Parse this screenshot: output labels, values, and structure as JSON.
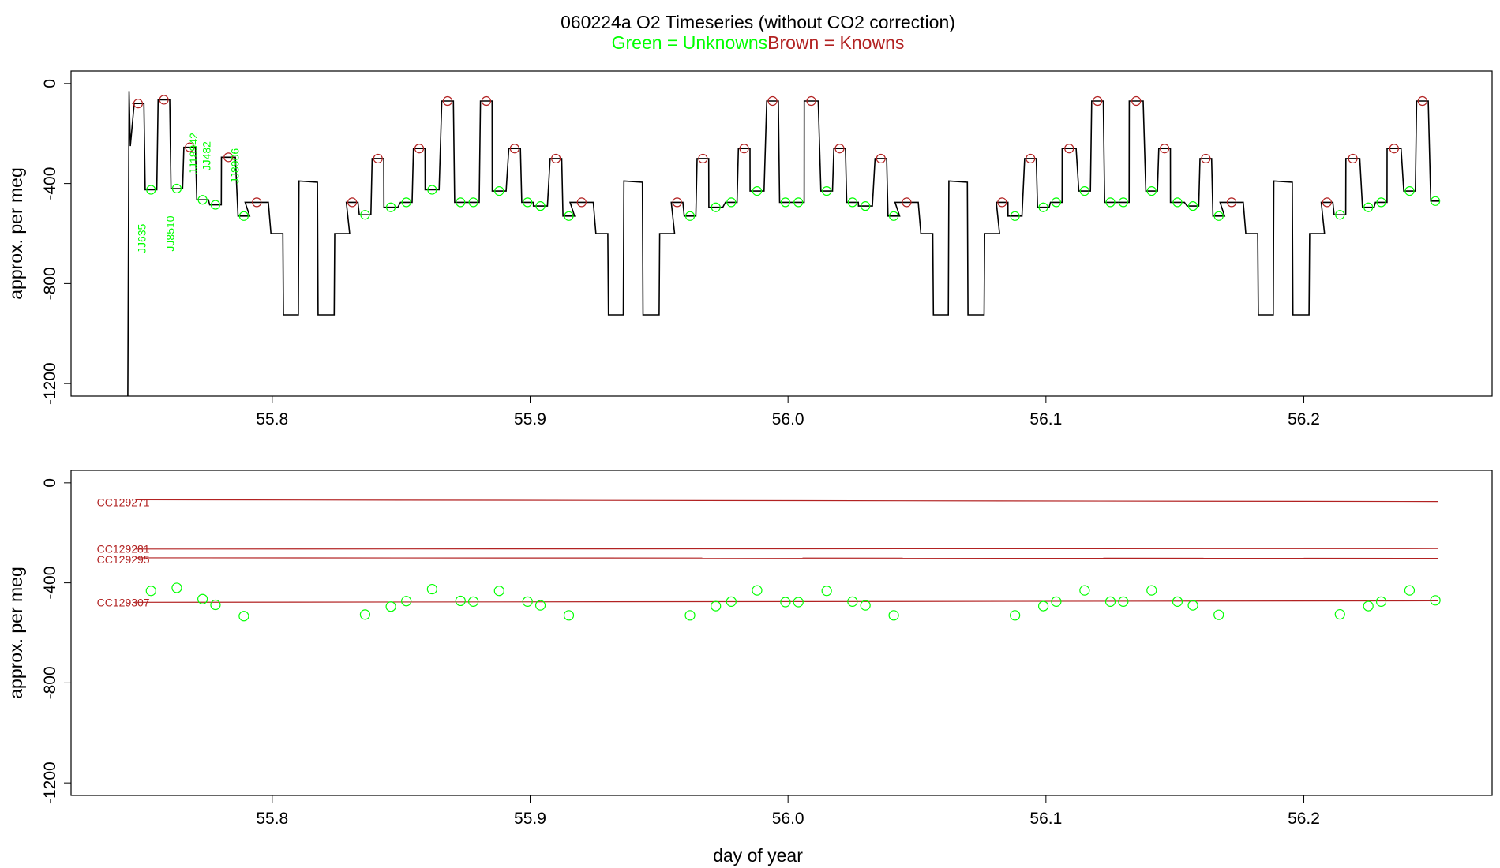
{
  "chart_data": [
    {
      "type": "line",
      "title_line1": "060224a   O2 Timeseries (without CO2 correction)",
      "subtitle_green": "Green = Unknowns",
      "subtitle_brown": "Brown = Knowns",
      "xlabel": "",
      "ylabel": "approx. per meg",
      "xlim": [
        55.722,
        56.273
      ],
      "ylim": [
        -1250,
        50
      ],
      "x_ticks": [
        "55.8",
        "55.9",
        "56.0",
        "56.1",
        "56.2"
      ],
      "x_tick_values": [
        55.8,
        55.9,
        56.0,
        56.1,
        56.2
      ],
      "y_ticks": [
        "0",
        "-400",
        "-800",
        "-1200"
      ],
      "y_tick_values": [
        0,
        -400,
        -800,
        -1200
      ],
      "colors": {
        "unknown": "#00ff00",
        "known": "#b22222",
        "trace": "#000000"
      },
      "sample_labels": [
        {
          "text": "JJ635",
          "x": 55.751,
          "y": -620
        },
        {
          "text": "JJ8510",
          "x": 55.762,
          "y": -600
        },
        {
          "text": "JJ18942",
          "x": 55.771,
          "y": -280
        },
        {
          "text": "JJ482",
          "x": 55.776,
          "y": -290
        },
        {
          "text": "JJ8906",
          "x": 55.787,
          "y": -330
        }
      ],
      "unknown_points": [
        {
          "x": 55.753,
          "y": -425
        },
        {
          "x": 55.763,
          "y": -420
        },
        {
          "x": 55.773,
          "y": -465
        },
        {
          "x": 55.778,
          "y": -485
        },
        {
          "x": 55.789,
          "y": -530
        },
        {
          "x": 55.836,
          "y": -525
        },
        {
          "x": 55.846,
          "y": -495
        },
        {
          "x": 55.852,
          "y": -475
        },
        {
          "x": 55.862,
          "y": -425
        },
        {
          "x": 55.873,
          "y": -475
        },
        {
          "x": 55.878,
          "y": -475
        },
        {
          "x": 55.888,
          "y": -430
        },
        {
          "x": 55.899,
          "y": -475
        },
        {
          "x": 55.904,
          "y": -490
        },
        {
          "x": 55.915,
          "y": -530
        },
        {
          "x": 55.962,
          "y": -530
        },
        {
          "x": 55.972,
          "y": -495
        },
        {
          "x": 55.978,
          "y": -475
        },
        {
          "x": 55.988,
          "y": -430
        },
        {
          "x": 55.999,
          "y": -475
        },
        {
          "x": 56.004,
          "y": -475
        },
        {
          "x": 56.015,
          "y": -430
        },
        {
          "x": 56.025,
          "y": -475
        },
        {
          "x": 56.03,
          "y": -490
        },
        {
          "x": 56.041,
          "y": -530
        },
        {
          "x": 56.088,
          "y": -530
        },
        {
          "x": 56.099,
          "y": -495
        },
        {
          "x": 56.104,
          "y": -475
        },
        {
          "x": 56.115,
          "y": -430
        },
        {
          "x": 56.125,
          "y": -475
        },
        {
          "x": 56.13,
          "y": -475
        },
        {
          "x": 56.141,
          "y": -430
        },
        {
          "x": 56.151,
          "y": -475
        },
        {
          "x": 56.157,
          "y": -490
        },
        {
          "x": 56.167,
          "y": -530
        },
        {
          "x": 56.214,
          "y": -525
        },
        {
          "x": 56.225,
          "y": -495
        },
        {
          "x": 56.23,
          "y": -475
        },
        {
          "x": 56.241,
          "y": -430
        },
        {
          "x": 56.251,
          "y": -470
        }
      ],
      "known_points": [
        {
          "x": 55.748,
          "y": -80
        },
        {
          "x": 55.758,
          "y": -65
        },
        {
          "x": 55.768,
          "y": -255
        },
        {
          "x": 55.783,
          "y": -295
        },
        {
          "x": 55.794,
          "y": -475
        },
        {
          "x": 55.831,
          "y": -475
        },
        {
          "x": 55.841,
          "y": -300
        },
        {
          "x": 55.857,
          "y": -260
        },
        {
          "x": 55.868,
          "y": -70
        },
        {
          "x": 55.883,
          "y": -70
        },
        {
          "x": 55.894,
          "y": -260
        },
        {
          "x": 55.91,
          "y": -300
        },
        {
          "x": 55.92,
          "y": -475
        },
        {
          "x": 55.957,
          "y": -475
        },
        {
          "x": 55.967,
          "y": -300
        },
        {
          "x": 55.983,
          "y": -260
        },
        {
          "x": 55.994,
          "y": -70
        },
        {
          "x": 56.009,
          "y": -70
        },
        {
          "x": 56.02,
          "y": -260
        },
        {
          "x": 56.036,
          "y": -300
        },
        {
          "x": 56.046,
          "y": -475
        },
        {
          "x": 56.083,
          "y": -475
        },
        {
          "x": 56.094,
          "y": -300
        },
        {
          "x": 56.109,
          "y": -260
        },
        {
          "x": 56.12,
          "y": -70
        },
        {
          "x": 56.135,
          "y": -70
        },
        {
          "x": 56.146,
          "y": -260
        },
        {
          "x": 56.162,
          "y": -300
        },
        {
          "x": 56.172,
          "y": -475
        },
        {
          "x": 56.209,
          "y": -475
        },
        {
          "x": 56.219,
          "y": -300
        },
        {
          "x": 56.235,
          "y": -260
        },
        {
          "x": 56.246,
          "y": -70
        }
      ]
    },
    {
      "type": "scatter",
      "xlabel": "day of year",
      "ylabel": "approx. per meg",
      "xlim": [
        55.722,
        56.273
      ],
      "ylim": [
        -1250,
        50
      ],
      "x_ticks": [
        "55.8",
        "55.9",
        "56.0",
        "56.1",
        "56.2"
      ],
      "x_tick_values": [
        55.8,
        55.9,
        56.0,
        56.1,
        56.2
      ],
      "y_ticks": [
        "0",
        "-400",
        "-800",
        "-1200"
      ],
      "y_tick_values": [
        0,
        -400,
        -800,
        -1200
      ],
      "reference_lines": [
        {
          "name": "CC129271",
          "x": [
            55.747,
            56.252
          ],
          "y": [
            -68,
            -75
          ],
          "label_y": -93
        },
        {
          "name": "CC129281",
          "x": [
            55.747,
            56.252
          ],
          "y": [
            -265,
            -263
          ],
          "label_y": -280
        },
        {
          "name": "CC129295",
          "x": [
            55.747,
            56.252
          ],
          "y": [
            -300,
            -302
          ],
          "label_y": -322
        },
        {
          "name": "CC129307",
          "x": [
            55.747,
            56.252
          ],
          "y": [
            -478,
            -472
          ],
          "label_y": -495
        }
      ],
      "points": [
        {
          "x": 55.753,
          "y": -432
        },
        {
          "x": 55.763,
          "y": -420
        },
        {
          "x": 55.773,
          "y": -465
        },
        {
          "x": 55.778,
          "y": -488
        },
        {
          "x": 55.789,
          "y": -533
        },
        {
          "x": 55.836,
          "y": -527
        },
        {
          "x": 55.846,
          "y": -495
        },
        {
          "x": 55.852,
          "y": -473
        },
        {
          "x": 55.862,
          "y": -425
        },
        {
          "x": 55.873,
          "y": -472
        },
        {
          "x": 55.878,
          "y": -475
        },
        {
          "x": 55.888,
          "y": -432
        },
        {
          "x": 55.899,
          "y": -475
        },
        {
          "x": 55.904,
          "y": -490
        },
        {
          "x": 55.915,
          "y": -530
        },
        {
          "x": 55.962,
          "y": -530
        },
        {
          "x": 55.972,
          "y": -493
        },
        {
          "x": 55.978,
          "y": -475
        },
        {
          "x": 55.988,
          "y": -430
        },
        {
          "x": 55.999,
          "y": -477
        },
        {
          "x": 56.004,
          "y": -477
        },
        {
          "x": 56.015,
          "y": -432
        },
        {
          "x": 56.025,
          "y": -475
        },
        {
          "x": 56.03,
          "y": -490
        },
        {
          "x": 56.041,
          "y": -530
        },
        {
          "x": 56.088,
          "y": -530
        },
        {
          "x": 56.099,
          "y": -493
        },
        {
          "x": 56.104,
          "y": -475
        },
        {
          "x": 56.115,
          "y": -430
        },
        {
          "x": 56.125,
          "y": -475
        },
        {
          "x": 56.13,
          "y": -475
        },
        {
          "x": 56.141,
          "y": -430
        },
        {
          "x": 56.151,
          "y": -475
        },
        {
          "x": 56.157,
          "y": -490
        },
        {
          "x": 56.167,
          "y": -528
        },
        {
          "x": 56.214,
          "y": -526
        },
        {
          "x": 56.225,
          "y": -493
        },
        {
          "x": 56.23,
          "y": -475
        },
        {
          "x": 56.241,
          "y": -430
        },
        {
          "x": 56.251,
          "y": -470
        }
      ]
    }
  ]
}
